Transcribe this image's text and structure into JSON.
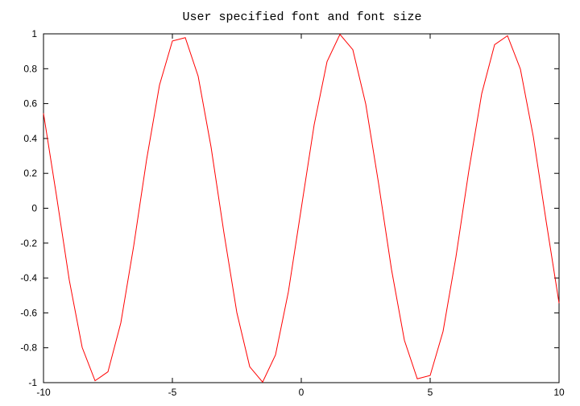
{
  "chart_data": {
    "type": "line",
    "title": "User specified font and font size",
    "xlabel": "",
    "ylabel": "",
    "xlim": [
      -10,
      10
    ],
    "ylim": [
      -1,
      1
    ],
    "grid": false,
    "legend": "none",
    "x_ticks": [
      "-10",
      "-5",
      "0",
      "5",
      "10"
    ],
    "y_ticks": [
      "-1",
      "-0.8",
      "-0.6",
      "-0.4",
      "-0.2",
      "0",
      "0.2",
      "0.4",
      "0.6",
      "0.8",
      "1"
    ],
    "series": [
      {
        "function": "sin(x)",
        "color": "#ff0000",
        "x": [
          -10,
          -9.5,
          -9,
          -8.5,
          -8,
          -7.5,
          -7,
          -6.5,
          -6,
          -5.5,
          -5,
          -4.5,
          -4,
          -3.5,
          -3,
          -2.5,
          -2,
          -1.5,
          -1,
          -0.5,
          0,
          0.5,
          1,
          1.5,
          2,
          2.5,
          3,
          3.5,
          4,
          4.5,
          5,
          5.5,
          6,
          6.5,
          7,
          7.5,
          8,
          8.5,
          9,
          9.5,
          10
        ],
        "y": [
          0.544,
          0.075,
          -0.412,
          -0.798,
          -0.989,
          -0.938,
          -0.657,
          -0.215,
          0.279,
          0.706,
          0.959,
          0.978,
          0.757,
          0.351,
          -0.141,
          -0.598,
          -0.909,
          -0.997,
          -0.841,
          -0.479,
          0,
          0.479,
          0.841,
          0.997,
          0.909,
          0.598,
          0.141,
          -0.351,
          -0.757,
          -0.978,
          -0.959,
          -0.706,
          -0.279,
          0.215,
          0.657,
          0.938,
          0.989,
          0.798,
          0.412,
          -0.075,
          -0.544
        ]
      }
    ]
  }
}
